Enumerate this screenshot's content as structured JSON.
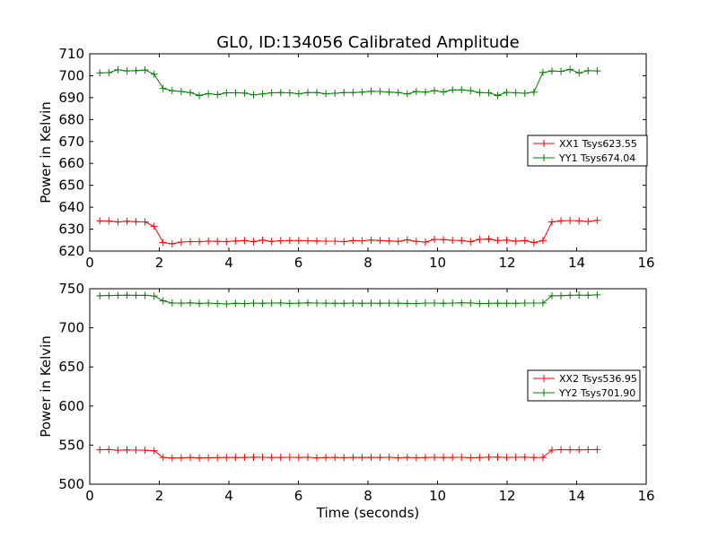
{
  "figure": {
    "title": "GL0, ID:134056 Calibrated Amplitude"
  },
  "chart_data": [
    {
      "type": "line",
      "title": "GL0, ID:134056 Calibrated Amplitude",
      "xlabel": "",
      "ylabel": "Power in Kelvin",
      "xlim": [
        0,
        16
      ],
      "ylim": [
        620,
        710
      ],
      "xticks": [
        0,
        2,
        4,
        6,
        8,
        10,
        12,
        14,
        16
      ],
      "yticks": [
        620,
        630,
        640,
        650,
        660,
        670,
        680,
        690,
        700,
        710
      ],
      "grid": false,
      "legend_position": "center-right",
      "x": [
        0.29,
        0.55,
        0.81,
        1.07,
        1.33,
        1.59,
        1.85,
        2.11,
        2.37,
        2.63,
        2.89,
        3.15,
        3.41,
        3.67,
        3.93,
        4.19,
        4.45,
        4.71,
        4.97,
        5.23,
        5.49,
        5.75,
        6.01,
        6.27,
        6.53,
        6.79,
        7.05,
        7.31,
        7.57,
        7.83,
        8.09,
        8.35,
        8.61,
        8.87,
        9.13,
        9.39,
        9.65,
        9.91,
        10.17,
        10.43,
        10.69,
        10.95,
        11.21,
        11.47,
        11.73,
        11.99,
        12.25,
        12.51,
        12.77,
        13.03,
        13.29,
        13.55,
        13.81,
        14.07,
        14.33,
        14.59
      ],
      "series": [
        {
          "name": "XX1 Tsys623.55",
          "color": "#ff0000",
          "values": [
            633.8,
            633.7,
            633.3,
            633.6,
            633.4,
            633.3,
            631.3,
            623.9,
            623.3,
            624.1,
            624.3,
            624.3,
            624.5,
            624.4,
            624.3,
            624.6,
            624.8,
            624.3,
            625.0,
            624.4,
            624.7,
            624.8,
            624.8,
            624.7,
            624.6,
            624.5,
            624.5,
            624.3,
            624.8,
            624.7,
            625.0,
            624.8,
            624.6,
            624.4,
            625.1,
            624.4,
            624.1,
            625.3,
            625.2,
            624.9,
            624.8,
            624.3,
            625.3,
            625.5,
            624.8,
            625.0,
            624.5,
            624.8,
            623.9,
            624.8,
            633.3,
            633.8,
            633.9,
            633.8,
            633.5,
            634.0
          ]
        },
        {
          "name": "YY1 Tsys674.04",
          "color": "#008000",
          "values": [
            701.3,
            701.4,
            702.7,
            702.2,
            702.3,
            702.6,
            700.7,
            694.2,
            693.2,
            692.8,
            692.3,
            691.0,
            691.8,
            691.4,
            692.2,
            692.2,
            692.1,
            691.3,
            691.7,
            692.2,
            692.3,
            692.2,
            691.8,
            692.3,
            692.3,
            691.8,
            692.0,
            692.3,
            692.3,
            692.5,
            692.9,
            692.8,
            692.5,
            692.3,
            691.7,
            692.8,
            692.5,
            693.2,
            692.6,
            693.5,
            693.6,
            693.2,
            692.3,
            692.2,
            691.0,
            692.4,
            692.2,
            692.0,
            692.5,
            701.5,
            702.2,
            702.0,
            702.9,
            701.3,
            702.3,
            702.2
          ]
        }
      ]
    },
    {
      "type": "line",
      "title": "",
      "xlabel": "Time (seconds)",
      "ylabel": "Power in Kelvin",
      "xlim": [
        0,
        16
      ],
      "ylim": [
        500,
        750
      ],
      "xticks": [
        0,
        2,
        4,
        6,
        8,
        10,
        12,
        14,
        16
      ],
      "yticks": [
        500,
        550,
        600,
        650,
        700,
        750
      ],
      "grid": false,
      "legend_position": "center-right",
      "x": [
        0.29,
        0.55,
        0.81,
        1.07,
        1.33,
        1.59,
        1.85,
        2.11,
        2.37,
        2.63,
        2.89,
        3.15,
        3.41,
        3.67,
        3.93,
        4.19,
        4.45,
        4.71,
        4.97,
        5.23,
        5.49,
        5.75,
        6.01,
        6.27,
        6.53,
        6.79,
        7.05,
        7.31,
        7.57,
        7.83,
        8.09,
        8.35,
        8.61,
        8.87,
        9.13,
        9.39,
        9.65,
        9.91,
        10.17,
        10.43,
        10.69,
        10.95,
        11.21,
        11.47,
        11.73,
        11.99,
        12.25,
        12.51,
        12.77,
        13.03,
        13.29,
        13.55,
        13.81,
        14.07,
        14.33,
        14.59
      ],
      "series": [
        {
          "name": "XX2 Tsys536.95",
          "color": "#ff0000",
          "values": [
            544.0,
            544.3,
            543.5,
            543.8,
            543.6,
            543.5,
            542.8,
            534.3,
            533.5,
            533.7,
            534.1,
            533.6,
            533.8,
            534.0,
            534.3,
            534.2,
            534.2,
            534.5,
            534.4,
            534.2,
            534.3,
            534.4,
            534.3,
            534.4,
            533.7,
            534.1,
            534.2,
            534.0,
            534.3,
            534.1,
            534.3,
            534.2,
            534.4,
            533.7,
            534.3,
            533.8,
            534.1,
            534.4,
            534.2,
            534.3,
            534.4,
            533.8,
            534.1,
            534.5,
            534.6,
            534.3,
            534.4,
            534.5,
            534.2,
            534.3,
            543.6,
            544.1,
            544.0,
            543.8,
            544.1,
            544.3
          ]
        },
        {
          "name": "YY2 Tsys701.90",
          "color": "#008000",
          "values": [
            741.0,
            741.3,
            741.5,
            741.8,
            741.5,
            741.6,
            740.7,
            734.5,
            731.8,
            731.5,
            731.9,
            731.2,
            731.6,
            731.1,
            730.5,
            731.4,
            731.1,
            731.7,
            731.4,
            731.6,
            731.8,
            731.2,
            731.5,
            731.9,
            731.6,
            731.5,
            731.4,
            731.3,
            731.6,
            731.4,
            731.6,
            731.3,
            731.7,
            731.4,
            731.2,
            731.1,
            731.6,
            731.6,
            731.3,
            731.7,
            731.9,
            731.8,
            731.1,
            731.2,
            731.5,
            731.3,
            731.4,
            731.6,
            731.6,
            731.8,
            740.9,
            741.1,
            741.6,
            741.8,
            741.7,
            742.1
          ]
        }
      ]
    }
  ]
}
